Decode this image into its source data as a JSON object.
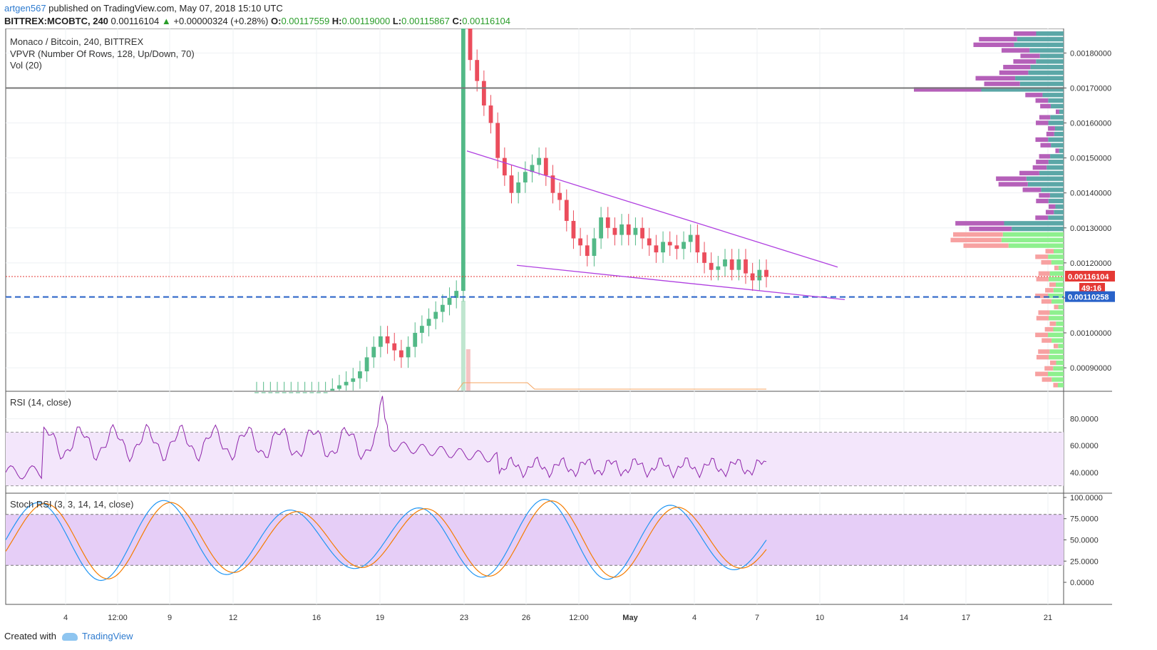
{
  "header": {
    "user": "artgen567",
    "published": " published on TradingView.com, May 07, 2018 15:10 UTC",
    "symbol": "BITTREX:MCOBTC, 240",
    "price": "0.00116104",
    "change": "+0.00000324 (+0.28%)",
    "o_label": "O:",
    "o": "0.00117559",
    "h_label": "H:",
    "h": "0.00119000",
    "l_label": "L:",
    "l": "0.00115867",
    "c_label": "C:",
    "c": "0.00116104"
  },
  "footer": {
    "created": "Created with",
    "brand": "TradingView"
  },
  "colors": {
    "up": "#53b987",
    "down": "#eb4d5c",
    "trend": "#b040e0",
    "dash": "#2962c9",
    "vp_up": "#8ef08e",
    "vp_down": "#f7a1a1",
    "vp_up_hi": "#5ba7a7",
    "vp_down_hi": "#b560b9"
  },
  "chart_data": [
    {
      "type": "candlestick",
      "title": "Monaco / Bitcoin, 240, BITTREX",
      "indicator_labels": [
        "VPVR (Number Of Rows, 128, Up/Down, 70)",
        "Vol (20)"
      ],
      "x_tick_labels": [
        "4",
        "12:00",
        "9",
        "12",
        "16",
        "19",
        "23",
        "26",
        "12:00",
        "May",
        "4",
        "7",
        "10",
        "14",
        "17",
        "21"
      ],
      "y_tick_labels": [
        "0.00180000",
        "0.00170000",
        "0.00160000",
        "0.00150000",
        "0.00140000",
        "0.00130000",
        "0.00120000",
        "0.00110000",
        "0.00100000",
        "0.00090000"
      ],
      "ylim": [
        0.000835,
        0.00187
      ],
      "last_price_label": "0.00116104",
      "countdown_label": "49:16",
      "dashed_level_label": "0.00110258",
      "dashed_level": 0.00110258,
      "horizontal_level": 0.0017,
      "trendlines": [
        {
          "from": [
            "Apr 23",
            0.00152
          ],
          "to": [
            "May 10",
            0.00119
          ]
        },
        {
          "from": [
            "Apr 25",
            0.00119
          ],
          "to": [
            "May 10",
            0.0011
          ]
        }
      ],
      "close_series": [
        0.00083,
        0.00083,
        0.00083,
        0.00083,
        0.00083,
        0.00083,
        0.00083,
        0.00083,
        0.00083,
        0.00083,
        0.00083,
        0.00084,
        0.00085,
        0.00086,
        0.00087,
        0.00089,
        0.00093,
        0.00096,
        0.00099,
        0.00097,
        0.00095,
        0.00093,
        0.00096,
        0.001,
        0.00102,
        0.00104,
        0.00106,
        0.00108,
        0.0011,
        0.00112,
        0.0019,
        0.00178,
        0.00172,
        0.00165,
        0.0016,
        0.0015,
        0.00145,
        0.0014,
        0.00143,
        0.00146,
        0.00148,
        0.0015,
        0.00145,
        0.0014,
        0.00138,
        0.00132,
        0.00127,
        0.00125,
        0.00122,
        0.00127,
        0.00133,
        0.0013,
        0.00128,
        0.00131,
        0.00128,
        0.0013,
        0.00127,
        0.00125,
        0.00123,
        0.00126,
        0.00125,
        0.00124,
        0.00126,
        0.00128,
        0.00123,
        0.0012,
        0.00118,
        0.00119,
        0.00121,
        0.00118,
        0.00121,
        0.00117,
        0.00115,
        0.00118,
        0.00116
      ],
      "rsi": {
        "label": "RSI (14, close)",
        "y_tick_labels": [
          "80.0000",
          "60.0000",
          "40.0000"
        ],
        "ylim": [
          25,
          100
        ],
        "band": [
          30,
          70
        ]
      },
      "stoch_rsi": {
        "label": "Stoch RSI (3, 3, 14, 14, close)",
        "y_tick_labels": [
          "100.0000",
          "75.0000",
          "50.0000",
          "25.0000",
          "0.0000"
        ],
        "ylim": [
          -5,
          105
        ],
        "band": [
          20,
          80
        ]
      }
    }
  ]
}
